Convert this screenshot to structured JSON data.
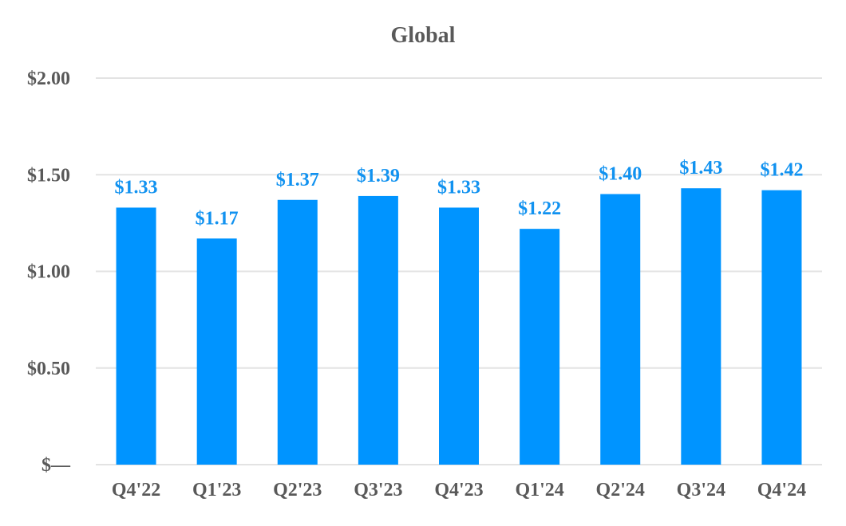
{
  "chart_data": {
    "type": "bar",
    "title": "Global",
    "categories": [
      "Q4'22",
      "Q1'23",
      "Q2'23",
      "Q3'23",
      "Q4'23",
      "Q1'24",
      "Q2'24",
      "Q3'24",
      "Q4'24"
    ],
    "values": [
      1.33,
      1.17,
      1.37,
      1.39,
      1.33,
      1.22,
      1.4,
      1.43,
      1.42
    ],
    "data_labels": [
      "$1.33",
      "$1.17",
      "$1.37",
      "$1.39",
      "$1.33",
      "$1.22",
      "$1.40",
      "$1.43",
      "$1.42"
    ],
    "y_ticks": [
      {
        "value": 0,
        "label": "$—"
      },
      {
        "value": 0.5,
        "label": "$0.50"
      },
      {
        "value": 1.0,
        "label": "$1.00"
      },
      {
        "value": 1.5,
        "label": "$1.50"
      },
      {
        "value": 2.0,
        "label": "$2.00"
      }
    ],
    "ylim": [
      0,
      2.0
    ],
    "grid": true,
    "legend": "none",
    "colors": {
      "bar": "#0094FF",
      "data_label": "#1192F0",
      "text": "#595959",
      "grid": "#e3e3e3"
    }
  }
}
